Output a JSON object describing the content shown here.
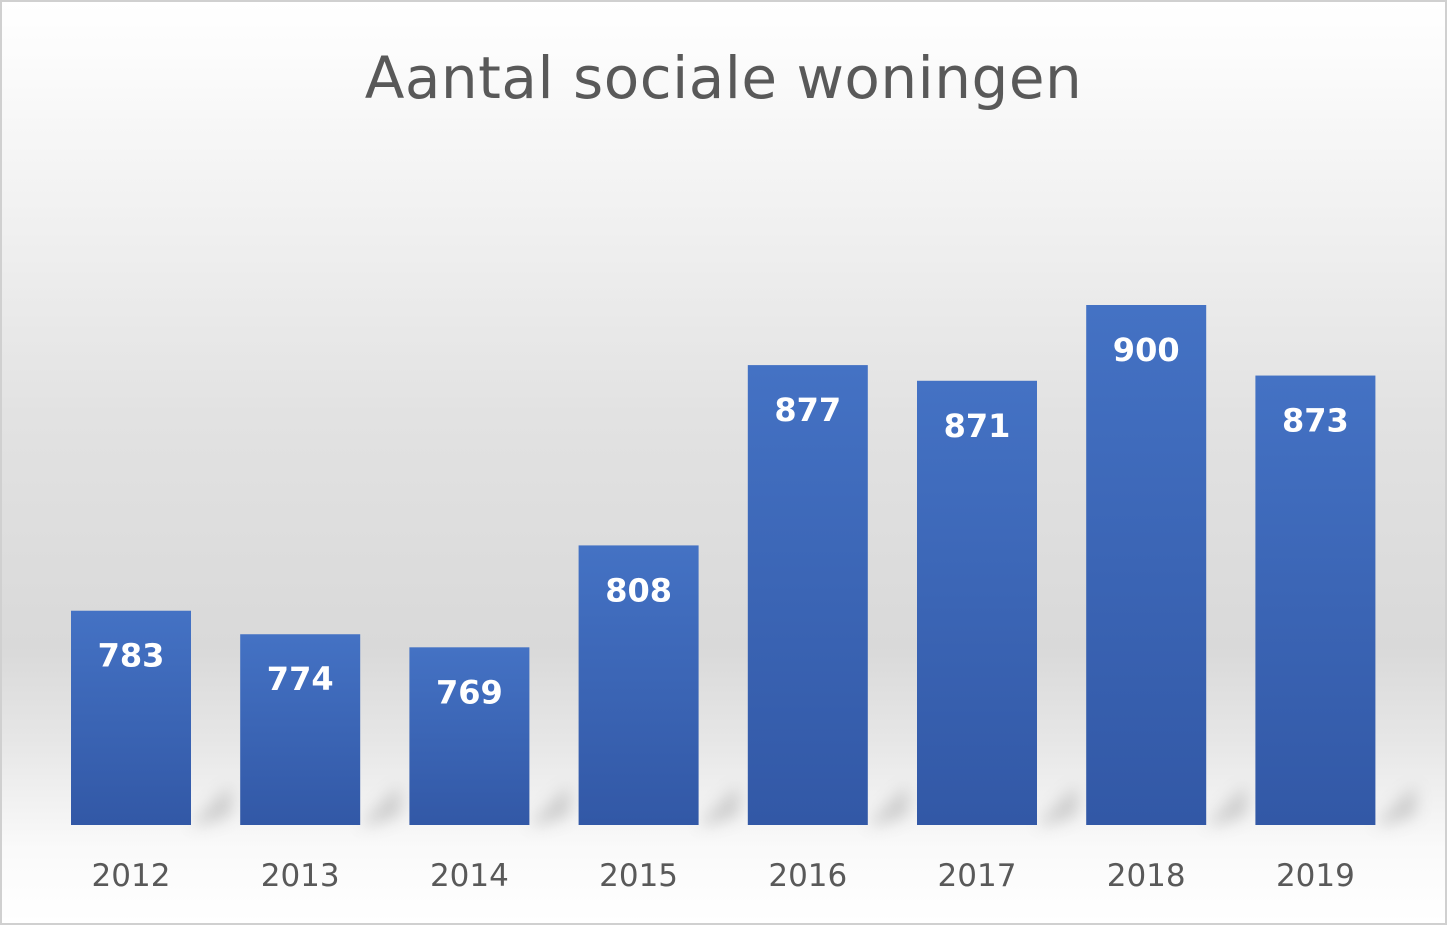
{
  "chart_data": {
    "type": "bar",
    "title": "Aantal sociale woningen",
    "categories": [
      "2012",
      "2013",
      "2014",
      "2015",
      "2016",
      "2017",
      "2018",
      "2019"
    ],
    "values": [
      783,
      774,
      769,
      808,
      877,
      871,
      900,
      873
    ],
    "xlabel": "",
    "ylabel": "",
    "ylim": [
      701,
      900
    ],
    "grid": false,
    "legend": "none",
    "bar_color": "#4472c4",
    "bar_color_dark": "#3258a6"
  }
}
